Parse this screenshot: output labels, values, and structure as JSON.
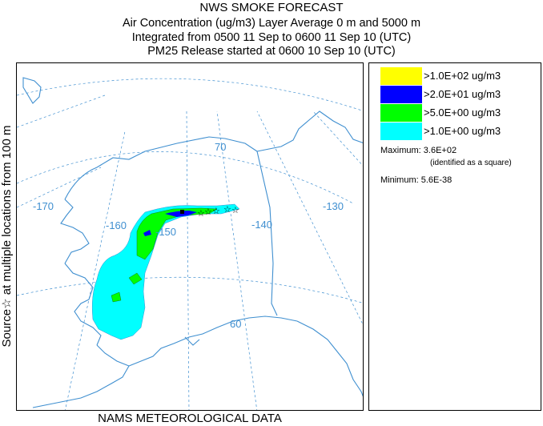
{
  "title": {
    "line1": "NWS SMOKE FORECAST",
    "line2": "Air Concentration (ug/m3) Layer Average    0 m and  5000 m",
    "line3": "Integrated from 0500 11 Sep to 0600 11 Sep 10 (UTC)",
    "line4": "PM25 Release started at 0600 10 Sep 10 (UTC)"
  },
  "side_label": "Source☆  at multiple locations   from  100 m",
  "footer": "NAMS METEOROLOGICAL DATA",
  "map": {
    "graticule_labels": {
      "lon_170": "-170",
      "lon_160": "-160",
      "lon_150": "-150",
      "lon_140": "-140",
      "lon_130": "-130",
      "lat_70": "70",
      "lat_60": "60"
    },
    "colors": {
      "coast": "#3f8fd0",
      "graticule": "#3f8fd0",
      "level_1": "#00ffff",
      "level_5": "#00ff00",
      "level_20": "#0000ff",
      "level_100": "#ffff00"
    }
  },
  "legend": {
    "items": [
      {
        "label": ">1.0E+02 ug/m3",
        "color": "#ffff00"
      },
      {
        "label": ">2.0E+01 ug/m3",
        "color": "#0000ff"
      },
      {
        "label": ">5.0E+00 ug/m3",
        "color": "#00ff00"
      },
      {
        "label": ">1.0E+00 ug/m3",
        "color": "#00ffff"
      }
    ],
    "maximum": "Maximum: 3.6E+02",
    "maximum_note": "(identified as a square)",
    "minimum": "Minimum: 5.6E-38"
  }
}
